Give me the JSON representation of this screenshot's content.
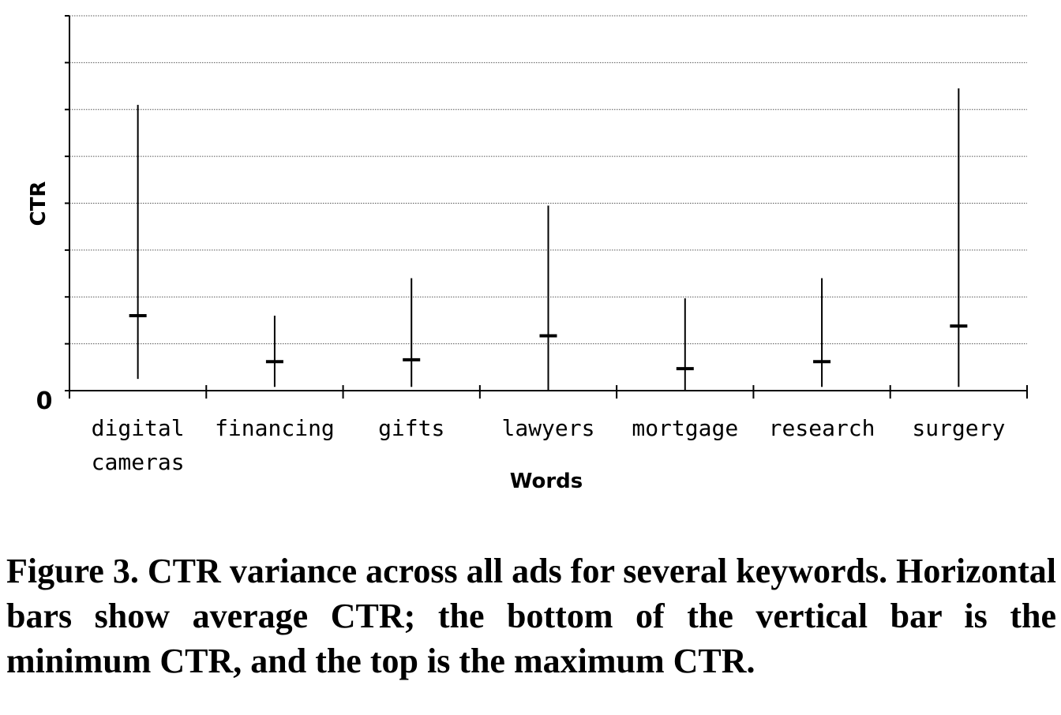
{
  "chart_data": {
    "type": "range",
    "categories": [
      [
        "digital",
        "cameras"
      ],
      [
        "financing"
      ],
      [
        "gifts"
      ],
      [
        "lawyers"
      ],
      [
        "mortgage"
      ],
      [
        "research"
      ],
      [
        "surgery"
      ]
    ],
    "series": [
      {
        "min": 0.25,
        "avg": 1.6,
        "max": 6.1
      },
      {
        "min": 0.08,
        "avg": 0.62,
        "max": 1.6
      },
      {
        "min": 0.08,
        "avg": 0.66,
        "max": 2.4
      },
      {
        "min": 0.0,
        "avg": 1.17,
        "max": 3.95
      },
      {
        "min": 0.0,
        "avg": 0.47,
        "max": 1.97
      },
      {
        "min": 0.08,
        "avg": 0.62,
        "max": 2.4
      },
      {
        "min": 0.08,
        "avg": 1.38,
        "max": 6.45
      }
    ],
    "xlabel": "Words",
    "ylabel": "CTR",
    "ytick_labels": [
      "0"
    ],
    "ylim": [
      0,
      8
    ],
    "grid": "horizontal dotted"
  },
  "caption": "Figure 3. CTR variance across all ads for several keywords. Horizontal bars show average CTR; the bottom of the vertical bar is the minimum CTR, and the top is the maximum CTR."
}
